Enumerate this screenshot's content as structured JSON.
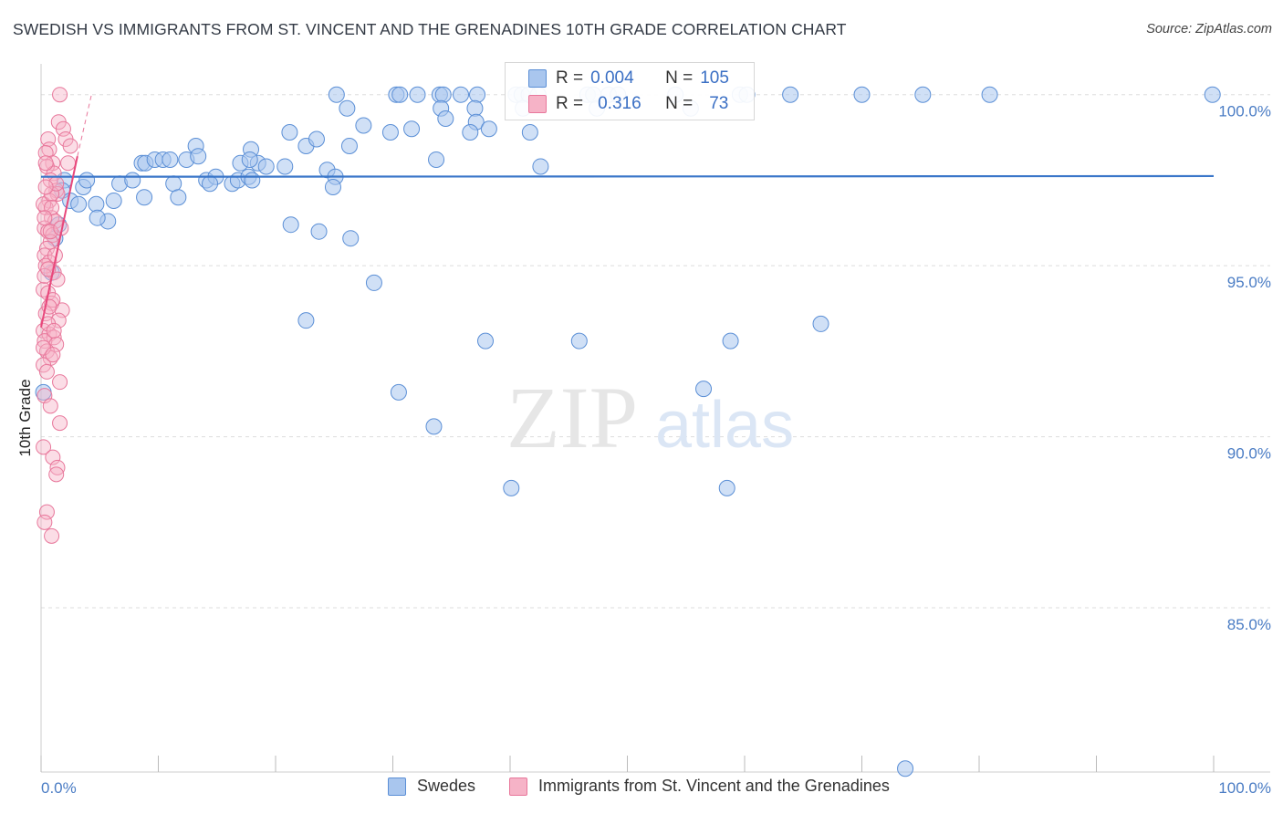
{
  "header": {
    "title": "SWEDISH VS IMMIGRANTS FROM ST. VINCENT AND THE GRENADINES 10TH GRADE CORRELATION CHART",
    "source": "Source: ZipAtlas.com"
  },
  "watermark": {
    "zip": "ZIP",
    "atlas": "atlas"
  },
  "stats": [
    {
      "r_label": "R =",
      "r_value": "0.004",
      "n_label": "N =",
      "n_value": "105"
    },
    {
      "r_label": "R =",
      "r_value": "0.316",
      "n_label": "N =",
      "n_value": "73"
    }
  ],
  "legend": [
    "Swedes",
    "Immigrants from St. Vincent and the Grenadines"
  ],
  "colors": {
    "blue_fill": "#a9c6ee",
    "blue_stroke": "#5b8fd6",
    "blue_line": "#3a76c9",
    "pink_fill": "#f6b3c7",
    "pink_stroke": "#e8779b",
    "pink_line": "#e8477b",
    "grid": "#dddddd",
    "tick_text": "#4a7cc4"
  },
  "chart_data": {
    "type": "scatter",
    "title": "SWEDISH VS IMMIGRANTS FROM ST. VINCENT AND THE GRENADINES 10TH GRADE CORRELATION CHART",
    "xlabel": "",
    "ylabel": "10th Grade",
    "xlim": [
      0,
      100
    ],
    "ylim": [
      80.2,
      100.9
    ],
    "x_ticks": [
      "0.0%",
      "100.0%"
    ],
    "y_ticks": [
      {
        "value": 100,
        "label": "100.0%"
      },
      {
        "value": 95,
        "label": "95.0%"
      },
      {
        "value": 90,
        "label": "90.0%"
      },
      {
        "value": 85,
        "label": "85.0%"
      }
    ],
    "grid": true,
    "legend_position": "bottom",
    "series": [
      {
        "name": "Swedes",
        "trend": {
          "x": [
            0,
            100
          ],
          "y": [
            97.6,
            97.62
          ]
        },
        "points": [
          [
            25.2,
            100
          ],
          [
            30.3,
            100
          ],
          [
            30.6,
            100
          ],
          [
            32.1,
            100
          ],
          [
            34.0,
            100
          ],
          [
            34.3,
            100
          ],
          [
            35.8,
            100
          ],
          [
            37.2,
            100
          ],
          [
            40.5,
            100
          ],
          [
            41.0,
            100
          ],
          [
            41.6,
            100
          ],
          [
            42.4,
            100
          ],
          [
            46.6,
            100
          ],
          [
            47.1,
            100
          ],
          [
            48.4,
            100
          ],
          [
            49.2,
            100
          ],
          [
            54.1,
            100
          ],
          [
            59.6,
            100
          ],
          [
            60.2,
            100
          ],
          [
            63.9,
            100
          ],
          [
            70.0,
            100
          ],
          [
            75.2,
            100
          ],
          [
            80.9,
            100
          ],
          [
            99.9,
            100
          ],
          [
            26.1,
            99.6
          ],
          [
            34.1,
            99.6
          ],
          [
            37.0,
            99.6
          ],
          [
            41.1,
            99.6
          ],
          [
            47.4,
            99.6
          ],
          [
            55.4,
            99.6
          ],
          [
            27.5,
            99.1
          ],
          [
            34.5,
            99.3
          ],
          [
            37.1,
            99.2
          ],
          [
            29.8,
            98.9
          ],
          [
            36.6,
            98.9
          ],
          [
            38.2,
            99.0
          ],
          [
            41.7,
            98.9
          ],
          [
            21.2,
            98.9
          ],
          [
            31.6,
            99
          ],
          [
            13.2,
            98.5
          ],
          [
            17.9,
            98.4
          ],
          [
            22.6,
            98.5
          ],
          [
            23.5,
            98.7
          ],
          [
            26.3,
            98.5
          ],
          [
            8.6,
            98.0
          ],
          [
            8.9,
            98.0
          ],
          [
            9.7,
            98.1
          ],
          [
            10.4,
            98.1
          ],
          [
            11.0,
            98.1
          ],
          [
            12.4,
            98.1
          ],
          [
            13.4,
            98.2
          ],
          [
            17.0,
            98.0
          ],
          [
            18.5,
            98.0
          ],
          [
            17.8,
            98.1
          ],
          [
            19.2,
            97.9
          ],
          [
            20.8,
            97.9
          ],
          [
            24.4,
            97.8
          ],
          [
            33.7,
            98.1
          ],
          [
            42.6,
            97.9
          ],
          [
            2.0,
            97.5
          ],
          [
            6.7,
            97.4
          ],
          [
            7.8,
            97.5
          ],
          [
            11.3,
            97.4
          ],
          [
            14.1,
            97.5
          ],
          [
            14.9,
            97.6
          ],
          [
            16.3,
            97.4
          ],
          [
            16.8,
            97.5
          ],
          [
            17.7,
            97.6
          ],
          [
            18.0,
            97.5
          ],
          [
            25.1,
            97.6
          ],
          [
            24.9,
            97.3
          ],
          [
            1.8,
            97.2
          ],
          [
            3.6,
            97.3
          ],
          [
            3.9,
            97.5
          ],
          [
            6.2,
            96.9
          ],
          [
            8.8,
            97.0
          ],
          [
            11.7,
            97.0
          ],
          [
            14.4,
            97.4
          ],
          [
            2.5,
            96.9
          ],
          [
            3.2,
            96.8
          ],
          [
            4.7,
            96.8
          ],
          [
            5.7,
            96.3
          ],
          [
            4.8,
            96.4
          ],
          [
            1.5,
            96.2
          ],
          [
            21.3,
            96.2
          ],
          [
            23.7,
            96.0
          ],
          [
            26.4,
            95.8
          ],
          [
            1.2,
            95.8
          ],
          [
            0.9,
            94.8
          ],
          [
            28.4,
            94.5
          ],
          [
            22.6,
            93.4
          ],
          [
            37.9,
            92.8
          ],
          [
            45.9,
            92.8
          ],
          [
            58.8,
            92.8
          ],
          [
            66.5,
            93.3
          ],
          [
            30.5,
            91.3
          ],
          [
            33.5,
            90.3
          ],
          [
            40.1,
            88.5
          ],
          [
            56.5,
            91.4
          ],
          [
            58.5,
            88.5
          ],
          [
            73.7,
            80.3
          ],
          [
            0.2,
            91.3
          ]
        ]
      },
      {
        "name": "Immigrants from St. Vincent and the Grenadines",
        "trend": {
          "x": [
            0.0,
            3.1
          ],
          "y": [
            93.2,
            98.2
          ],
          "dashed_to": {
            "x": 4.3,
            "y": 100.0
          }
        },
        "points": [
          [
            1.6,
            100
          ],
          [
            1.5,
            99.2
          ],
          [
            1.9,
            99.0
          ],
          [
            2.1,
            98.7
          ],
          [
            0.6,
            98.7
          ],
          [
            0.7,
            98.4
          ],
          [
            0.4,
            98.3
          ],
          [
            1.0,
            98.0
          ],
          [
            0.5,
            97.9
          ],
          [
            2.5,
            98.5
          ],
          [
            2.3,
            98.0
          ],
          [
            1.1,
            97.7
          ],
          [
            0.8,
            97.5
          ],
          [
            1.3,
            97.2
          ],
          [
            1.4,
            97.1
          ],
          [
            0.7,
            96.9
          ],
          [
            0.4,
            96.7
          ],
          [
            0.9,
            96.4
          ],
          [
            1.2,
            96.3
          ],
          [
            0.3,
            96.1
          ],
          [
            0.6,
            96.0
          ],
          [
            1.0,
            95.9
          ],
          [
            0.8,
            95.7
          ],
          [
            0.5,
            95.5
          ],
          [
            0.3,
            95.3
          ],
          [
            0.7,
            95.1
          ],
          [
            1.1,
            94.8
          ],
          [
            1.4,
            94.6
          ],
          [
            0.2,
            94.3
          ],
          [
            0.6,
            94.2
          ],
          [
            0.9,
            93.9
          ],
          [
            1.8,
            93.7
          ],
          [
            0.4,
            93.6
          ],
          [
            1.5,
            93.4
          ],
          [
            0.2,
            93.1
          ],
          [
            0.7,
            93.0
          ],
          [
            1.1,
            92.9
          ],
          [
            0.3,
            92.8
          ],
          [
            1.3,
            92.7
          ],
          [
            0.5,
            92.5
          ],
          [
            0.8,
            92.3
          ],
          [
            0.2,
            92.1
          ],
          [
            1.6,
            91.6
          ],
          [
            0.3,
            91.2
          ],
          [
            0.8,
            90.9
          ],
          [
            1.6,
            90.4
          ],
          [
            0.2,
            89.7
          ],
          [
            1.0,
            89.4
          ],
          [
            1.4,
            89.1
          ],
          [
            1.3,
            88.9
          ],
          [
            0.5,
            87.8
          ],
          [
            0.3,
            87.5
          ],
          [
            0.9,
            87.1
          ],
          [
            0.2,
            96.8
          ],
          [
            0.8,
            96.0
          ],
          [
            0.4,
            95.0
          ],
          [
            1.0,
            94.0
          ],
          [
            0.6,
            93.3
          ],
          [
            0.2,
            92.6
          ],
          [
            1.2,
            95.3
          ],
          [
            0.9,
            97.1
          ],
          [
            1.7,
            96.1
          ],
          [
            0.4,
            98.0
          ],
          [
            0.3,
            94.7
          ],
          [
            0.7,
            93.8
          ],
          [
            1.0,
            92.4
          ],
          [
            0.5,
            91.9
          ],
          [
            0.9,
            96.7
          ],
          [
            1.3,
            97.4
          ],
          [
            0.4,
            97.3
          ],
          [
            0.6,
            94.9
          ],
          [
            0.3,
            96.4
          ],
          [
            1.1,
            93.1
          ]
        ]
      }
    ]
  }
}
